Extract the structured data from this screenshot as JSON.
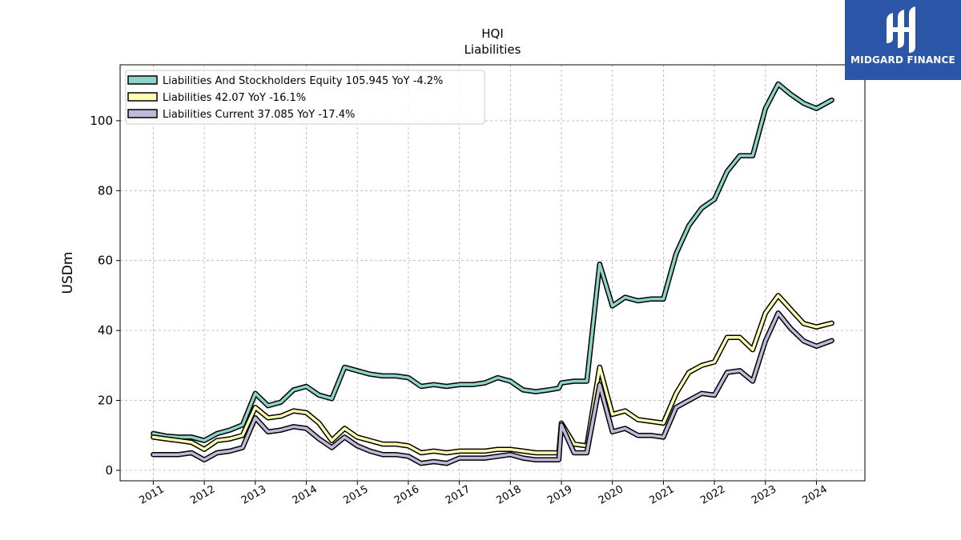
{
  "logo": {
    "text": "MIDGARD FINANCE"
  },
  "chart_data": {
    "type": "line",
    "title": "HQI",
    "subtitle": "Liabilities",
    "ylabel": "USDm",
    "xlabel": "",
    "ylim": [
      -3,
      116
    ],
    "xlim": [
      2010.35,
      2024.95
    ],
    "yticks": [
      0,
      20,
      40,
      60,
      80,
      100
    ],
    "xticks": [
      "2011",
      "2012",
      "2013",
      "2014",
      "2015",
      "2016",
      "2017",
      "2018",
      "2019",
      "2020",
      "2021",
      "2022",
      "2023",
      "2024"
    ],
    "grid": true,
    "legend_position": "top-left",
    "series": [
      {
        "name": "Liabilities And Stockholders Equity  105.945 YoY -4.2%",
        "color": "#8dd3c7",
        "x": [
          2011.0,
          2011.25,
          2011.5,
          2011.75,
          2012.0,
          2012.25,
          2012.5,
          2012.75,
          2013.0,
          2013.25,
          2013.5,
          2013.75,
          2014.0,
          2014.25,
          2014.5,
          2014.75,
          2015.0,
          2015.25,
          2015.5,
          2015.75,
          2016.0,
          2016.25,
          2016.5,
          2016.75,
          2017.0,
          2017.25,
          2017.5,
          2017.75,
          2018.0,
          2018.25,
          2018.5,
          2018.75,
          2018.95,
          2019.0,
          2019.25,
          2019.5,
          2019.75,
          2020.0,
          2020.25,
          2020.5,
          2020.75,
          2021.0,
          2021.25,
          2021.5,
          2021.75,
          2022.0,
          2022.25,
          2022.5,
          2022.75,
          2023.0,
          2023.25,
          2023.5,
          2023.75,
          2024.0,
          2024.3
        ],
        "values": [
          10.5,
          9.8,
          9.5,
          9.5,
          8.5,
          10.5,
          11.5,
          13.0,
          22.0,
          18.5,
          19.5,
          23.0,
          24.0,
          21.5,
          20.5,
          29.5,
          28.5,
          27.5,
          27.0,
          27.0,
          26.5,
          24.0,
          24.5,
          24.0,
          24.5,
          24.5,
          25.0,
          26.5,
          25.5,
          23.0,
          22.5,
          23.0,
          23.5,
          25.0,
          25.5,
          25.5,
          59.0,
          47.0,
          49.5,
          48.5,
          49.0,
          49.0,
          62.0,
          70.0,
          75.0,
          77.5,
          85.5,
          90.0,
          90.0,
          103.5,
          110.5,
          107.5,
          105.0,
          103.5,
          105.9
        ]
      },
      {
        "name": "Liabilities  42.07 YoY -16.1%",
        "color": "#ffffb3",
        "x": [
          2011.0,
          2011.25,
          2011.5,
          2011.75,
          2012.0,
          2012.25,
          2012.5,
          2012.75,
          2013.0,
          2013.25,
          2013.5,
          2013.75,
          2014.0,
          2014.25,
          2014.5,
          2014.75,
          2015.0,
          2015.25,
          2015.5,
          2015.75,
          2016.0,
          2016.25,
          2016.5,
          2016.75,
          2017.0,
          2017.25,
          2017.5,
          2017.75,
          2018.0,
          2018.25,
          2018.5,
          2018.75,
          2018.95,
          2019.0,
          2019.25,
          2019.5,
          2019.75,
          2020.0,
          2020.25,
          2020.5,
          2020.75,
          2021.0,
          2021.25,
          2021.5,
          2021.75,
          2022.0,
          2022.25,
          2022.5,
          2022.75,
          2023.0,
          2023.25,
          2023.5,
          2023.75,
          2024.0,
          2024.3
        ],
        "values": [
          9.5,
          9.0,
          8.5,
          8.0,
          6.0,
          8.5,
          9.0,
          10.0,
          18.0,
          15.0,
          15.5,
          17.0,
          16.5,
          13.5,
          8.5,
          12.0,
          9.5,
          8.5,
          7.5,
          7.5,
          7.0,
          5.0,
          5.5,
          5.0,
          5.5,
          5.5,
          5.5,
          6.0,
          6.0,
          5.5,
          5.0,
          5.0,
          5.0,
          13.5,
          7.5,
          7.0,
          29.5,
          16.0,
          17.0,
          14.5,
          14.0,
          13.5,
          22.0,
          28.0,
          30.0,
          31.0,
          38.0,
          38.0,
          34.5,
          45.0,
          50.0,
          46.0,
          42.0,
          41.0,
          42.1
        ]
      },
      {
        "name": "Liabilities Current  37.085 YoY -17.4%",
        "color": "#bebada",
        "x": [
          2011.0,
          2011.25,
          2011.5,
          2011.75,
          2012.0,
          2012.25,
          2012.5,
          2012.75,
          2013.0,
          2013.25,
          2013.5,
          2013.75,
          2014.0,
          2014.25,
          2014.5,
          2014.75,
          2015.0,
          2015.25,
          2015.5,
          2015.75,
          2016.0,
          2016.25,
          2016.5,
          2016.75,
          2017.0,
          2017.25,
          2017.5,
          2017.75,
          2018.0,
          2018.25,
          2018.5,
          2018.75,
          2018.95,
          2019.0,
          2019.25,
          2019.5,
          2019.75,
          2020.0,
          2020.25,
          2020.5,
          2020.75,
          2021.0,
          2021.25,
          2021.5,
          2021.75,
          2022.0,
          2022.25,
          2022.5,
          2022.75,
          2023.0,
          2023.25,
          2023.5,
          2023.75,
          2024.0,
          2024.3
        ],
        "values": [
          4.5,
          4.5,
          4.5,
          5.0,
          3.0,
          5.0,
          5.5,
          6.5,
          15.0,
          11.0,
          11.5,
          12.5,
          12.0,
          9.0,
          6.5,
          9.5,
          7.0,
          5.5,
          4.5,
          4.5,
          4.0,
          2.0,
          2.5,
          2.0,
          3.5,
          3.5,
          3.5,
          4.0,
          4.5,
          3.5,
          3.0,
          3.0,
          3.0,
          13.0,
          5.0,
          5.0,
          24.5,
          11.0,
          12.0,
          10.0,
          10.0,
          9.5,
          18.0,
          20.0,
          22.0,
          21.5,
          28.0,
          28.5,
          25.5,
          37.0,
          45.0,
          40.5,
          37.0,
          35.5,
          37.1
        ]
      }
    ]
  }
}
